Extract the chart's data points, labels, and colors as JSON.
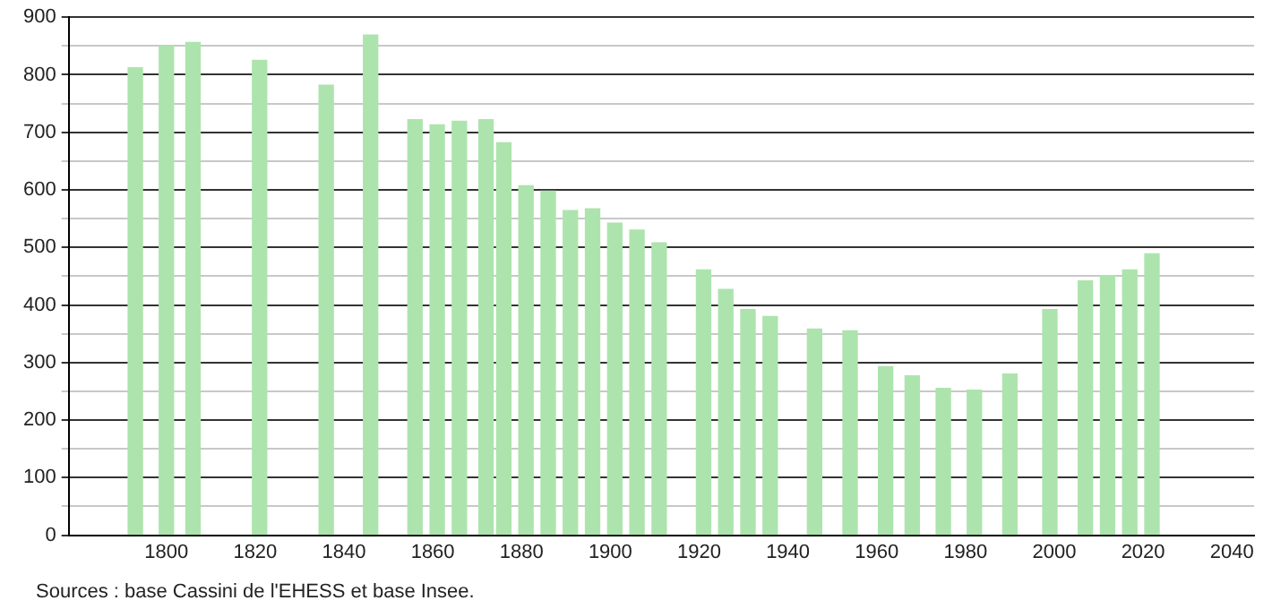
{
  "chart_data": {
    "type": "bar",
    "x": [
      1793,
      1800,
      1806,
      1821,
      1836,
      1846,
      1856,
      1861,
      1866,
      1872,
      1876,
      1881,
      1886,
      1891,
      1896,
      1901,
      1906,
      1911,
      1921,
      1926,
      1931,
      1936,
      1946,
      1954,
      1962,
      1968,
      1975,
      1982,
      1990,
      1999,
      2007,
      2012,
      2017,
      2022
    ],
    "values": [
      812,
      850,
      856,
      825,
      782,
      869,
      722,
      713,
      719,
      722,
      682,
      607,
      598,
      564,
      567,
      542,
      530,
      508,
      461,
      427,
      392,
      380,
      358,
      355,
      293,
      277,
      255,
      252,
      280,
      392,
      442,
      451,
      461,
      489
    ],
    "color": "#ade4ad",
    "xlim": [
      1778,
      2045
    ],
    "xticks": [
      1800,
      1820,
      1840,
      1860,
      1880,
      1900,
      1920,
      1940,
      1960,
      1980,
      2000,
      2020,
      2040
    ],
    "ylim": [
      0,
      900
    ],
    "yticks": [
      0,
      {
        "value": 50,
        "label": null
      },
      100,
      {
        "value": 150,
        "label": null
      },
      200,
      {
        "value": 250,
        "label": null
      },
      300,
      {
        "value": 350,
        "label": null
      },
      400,
      {
        "value": 450,
        "label": null
      },
      500,
      {
        "value": 550,
        "label": null
      },
      600,
      {
        "value": 650,
        "label": null
      },
      700,
      {
        "value": 750,
        "label": null
      },
      800,
      {
        "value": 850,
        "label": null
      },
      900
    ],
    "grid": "y",
    "legend": false,
    "annotations": [
      "Sources : base Cassini de l'EHESS et base Insee."
    ]
  }
}
